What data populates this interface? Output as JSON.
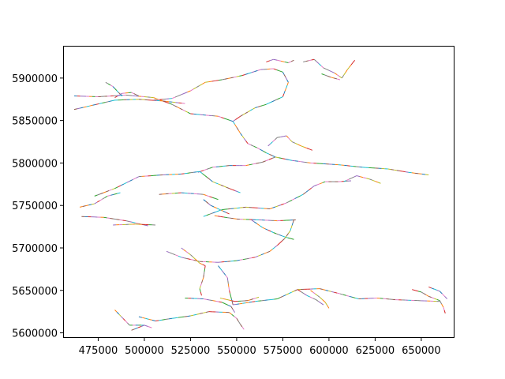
{
  "chart_data": {
    "type": "line",
    "title": "",
    "xlabel": "",
    "ylabel": "",
    "xlim": [
      456000,
      668000
    ],
    "ylim": [
      5594000,
      5938000
    ],
    "grid": false,
    "x_ticks": [
      475000,
      500000,
      525000,
      550000,
      575000,
      600000,
      625000,
      650000
    ],
    "x_tick_labels": [
      "475000",
      "500000",
      "525000",
      "550000",
      "575000",
      "600000",
      "625000",
      "650000"
    ],
    "y_ticks": [
      5600000,
      5650000,
      5700000,
      5750000,
      5800000,
      5850000,
      5900000
    ],
    "y_tick_labels": [
      "5600000",
      "5650000",
      "5700000",
      "5750000",
      "5800000",
      "5850000",
      "5900000"
    ],
    "series_colors": [
      "#1f77b4",
      "#ff7f0e",
      "#2ca02c",
      "#d62728",
      "#9467bd",
      "#8c564b",
      "#e377c2",
      "#7f7f7f",
      "#bcbd22",
      "#17becf"
    ],
    "series": [
      {
        "x": [
          462000,
          475000,
          490000,
          505000,
          515000,
          525000,
          540000,
          548000
        ],
        "y": [
          5879000,
          5878000,
          5880000,
          5877000,
          5869000,
          5858000,
          5855000,
          5849000
        ]
      },
      {
        "x": [
          462000,
          472000,
          484000,
          497000,
          510000,
          522000
        ],
        "y": [
          5863000,
          5868000,
          5874000,
          5875000,
          5873000,
          5870000
        ]
      },
      {
        "x": [
          479000,
          483000,
          486000,
          488000
        ],
        "y": [
          5895000,
          5890000,
          5883000,
          5879000
        ]
      },
      {
        "x": [
          484000,
          488000,
          493000,
          497000
        ],
        "y": [
          5877000,
          5882000,
          5883000,
          5879000
        ]
      },
      {
        "x": [
          505000,
          515000,
          525000,
          533000,
          542000,
          553000,
          563000,
          570000,
          575000
        ],
        "y": [
          5874000,
          5876000,
          5885000,
          5895000,
          5898000,
          5903000,
          5910000,
          5911000,
          5907000
        ]
      },
      {
        "x": [
          575000,
          578000,
          575000,
          566000,
          560000,
          556000,
          552000,
          548000
        ],
        "y": [
          5907000,
          5895000,
          5878000,
          5869000,
          5865000,
          5860000,
          5855000,
          5849000
        ]
      },
      {
        "x": [
          548000,
          552000,
          556000,
          561000,
          566000,
          571000
        ],
        "y": [
          5849000,
          5835000,
          5823000,
          5818000,
          5812000,
          5807000
        ]
      },
      {
        "x": [
          566000,
          570000,
          574000,
          578000,
          581000
        ],
        "y": [
          5919000,
          5922000,
          5920000,
          5918000,
          5921000
        ]
      },
      {
        "x": [
          586000,
          592000,
          597000,
          603000,
          607000,
          610000,
          614000
        ],
        "y": [
          5919000,
          5922000,
          5912000,
          5906000,
          5900000,
          5910000,
          5921000
        ]
      },
      {
        "x": [
          596000,
          601000,
          606000
        ],
        "y": [
          5905000,
          5901000,
          5898000
        ]
      },
      {
        "x": [
          571000,
          580000,
          590000,
          605000,
          618000,
          632000,
          643000,
          654000
        ],
        "y": [
          5807000,
          5803000,
          5800000,
          5798000,
          5795000,
          5793000,
          5789000,
          5786000
        ]
      },
      {
        "x": [
          529000,
          537000,
          546000,
          555000,
          564000,
          571000
        ],
        "y": [
          5789000,
          5795000,
          5797000,
          5797000,
          5801000,
          5807000
        ]
      },
      {
        "x": [
          567000,
          572000,
          577000,
          580000,
          585000,
          591000
        ],
        "y": [
          5820000,
          5830000,
          5832000,
          5825000,
          5820000,
          5815000
        ]
      },
      {
        "x": [
          473000,
          484000,
          497000,
          510000,
          520000,
          530000
        ],
        "y": [
          5761000,
          5770000,
          5784000,
          5786000,
          5787000,
          5790000
        ]
      },
      {
        "x": [
          530000,
          537000,
          546000,
          552000
        ],
        "y": [
          5790000,
          5778000,
          5770000,
          5765000
        ]
      },
      {
        "x": [
          465000,
          473000,
          480000,
          487000
        ],
        "y": [
          5748000,
          5752000,
          5761000,
          5765000
        ]
      },
      {
        "x": [
          466000,
          478000,
          490000,
          502000
        ],
        "y": [
          5737000,
          5736000,
          5732000,
          5726000
        ]
      },
      {
        "x": [
          483000,
          495000,
          506000
        ],
        "y": [
          5727000,
          5728000,
          5727000
        ]
      },
      {
        "x": [
          508000,
          520000,
          532000,
          540000
        ],
        "y": [
          5763000,
          5765000,
          5763000,
          5757000
        ]
      },
      {
        "x": [
          532000,
          536000,
          541000,
          546000
        ],
        "y": [
          5757000,
          5750000,
          5745000,
          5740000
        ]
      },
      {
        "x": [
          532000,
          542000,
          555000,
          568000,
          577000,
          586000
        ],
        "y": [
          5737000,
          5745000,
          5748000,
          5746000,
          5753000,
          5763000
        ]
      },
      {
        "x": [
          586000,
          592000,
          598000,
          605000,
          612000
        ],
        "y": [
          5763000,
          5773000,
          5778000,
          5778000,
          5779000
        ]
      },
      {
        "x": [
          608000,
          615000,
          622000,
          628000
        ],
        "y": [
          5778000,
          5785000,
          5781000,
          5776000
        ]
      },
      {
        "x": [
          538000,
          550000,
          562000,
          572000,
          582000
        ],
        "y": [
          5738000,
          5734000,
          5733000,
          5732000,
          5733000
        ]
      },
      {
        "x": [
          558000,
          564000,
          570000,
          576000,
          581000
        ],
        "y": [
          5733000,
          5724000,
          5718000,
          5713000,
          5710000
        ]
      },
      {
        "x": [
          581000,
          579000,
          576000,
          572000,
          568000
        ],
        "y": [
          5733000,
          5720000,
          5711000,
          5703000,
          5696000
        ]
      },
      {
        "x": [
          568000,
          560000,
          550000,
          540000,
          530000,
          520000,
          512000
        ],
        "y": [
          5696000,
          5689000,
          5685000,
          5683000,
          5684000,
          5689000,
          5696000
        ]
      },
      {
        "x": [
          520000,
          525000,
          530000,
          533000
        ],
        "y": [
          5700000,
          5692000,
          5682000,
          5679000
        ]
      },
      {
        "x": [
          533000,
          532000,
          530000,
          531000
        ],
        "y": [
          5679000,
          5665000,
          5652000,
          5644000
        ]
      },
      {
        "x": [
          540000,
          545000,
          546000,
          548000
        ],
        "y": [
          5679000,
          5665000,
          5650000,
          5633000
        ]
      },
      {
        "x": [
          548000,
          560000,
          572000,
          583000,
          595000,
          606000,
          616000
        ],
        "y": [
          5633000,
          5637000,
          5640000,
          5651000,
          5652000,
          5646000,
          5640000
        ]
      },
      {
        "x": [
          616000,
          626000,
          636000,
          648000,
          660000
        ],
        "y": [
          5640000,
          5641000,
          5639000,
          5638000,
          5637000
        ]
      },
      {
        "x": [
          541000,
          549000,
          556000,
          562000
        ],
        "y": [
          5641000,
          5637000,
          5638000,
          5642000
        ]
      },
      {
        "x": [
          522000,
          532000,
          542000,
          547000,
          549000
        ],
        "y": [
          5641000,
          5640000,
          5636000,
          5631000,
          5624000
        ]
      },
      {
        "x": [
          497000,
          506000,
          515000,
          525000,
          535000,
          546000
        ],
        "y": [
          5619000,
          5614000,
          5617000,
          5620000,
          5625000,
          5624000
        ]
      },
      {
        "x": [
          484000,
          492000,
          500000
        ],
        "y": [
          5627000,
          5609000,
          5609000
        ]
      },
      {
        "x": [
          493000,
          500000,
          504000
        ],
        "y": [
          5603000,
          5609000,
          5606000
        ]
      },
      {
        "x": [
          546000,
          550000,
          552000,
          554000
        ],
        "y": [
          5624000,
          5617000,
          5610000,
          5604000
        ]
      },
      {
        "x": [
          583000,
          588000,
          593000,
          597000
        ],
        "y": [
          5651000,
          5644000,
          5639000,
          5633000
        ]
      },
      {
        "x": [
          590000,
          595000,
          598000,
          600000
        ],
        "y": [
          5650000,
          5642000,
          5636000,
          5629000
        ]
      },
      {
        "x": [
          645000,
          650000,
          654000,
          660000
        ],
        "y": [
          5651000,
          5648000,
          5643000,
          5638000
        ]
      },
      {
        "x": [
          654000,
          660000,
          664000
        ],
        "y": [
          5654000,
          5649000,
          5640000
        ]
      },
      {
        "x": [
          660000,
          662000,
          663000
        ],
        "y": [
          5638000,
          5630000,
          5623000
        ]
      }
    ]
  }
}
